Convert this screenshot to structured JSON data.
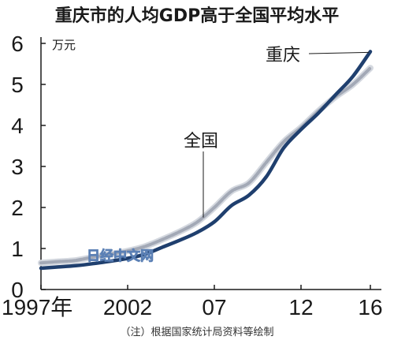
{
  "chart_data": {
    "type": "line",
    "title": "重庆市的人均GDP高于全国平均水平",
    "y_unit": "万元",
    "ylim": [
      0,
      6
    ],
    "y_ticks": [
      "0",
      "1",
      "2",
      "3",
      "4",
      "5",
      "6"
    ],
    "x_range": [
      1997,
      2016
    ],
    "x_ticks": [
      {
        "x": 1997,
        "label": "1997年"
      },
      {
        "x": 2002,
        "label": "2002"
      },
      {
        "x": 2007,
        "label": "07"
      },
      {
        "x": 2012,
        "label": "12"
      },
      {
        "x": 2016,
        "label": "16"
      }
    ],
    "x": [
      1997,
      1998,
      1999,
      2000,
      2001,
      2002,
      2003,
      2004,
      2005,
      2006,
      2007,
      2008,
      2009,
      2010,
      2011,
      2012,
      2013,
      2014,
      2015,
      2016
    ],
    "series": [
      {
        "name": "全国",
        "color": "#a3a9b6",
        "values": [
          0.65,
          0.68,
          0.71,
          0.79,
          0.86,
          0.94,
          1.05,
          1.22,
          1.41,
          1.64,
          2.0,
          2.4,
          2.6,
          3.1,
          3.6,
          3.95,
          4.35,
          4.7,
          5.0,
          5.4
        ]
      },
      {
        "name": "重庆",
        "color": "#1f3f6e",
        "values": [
          0.52,
          0.55,
          0.58,
          0.63,
          0.69,
          0.76,
          0.86,
          1.03,
          1.2,
          1.39,
          1.65,
          2.05,
          2.3,
          2.75,
          3.45,
          3.9,
          4.3,
          4.75,
          5.2,
          5.8
        ]
      }
    ],
    "annotations": [
      {
        "text": "重庆",
        "series": "重庆"
      },
      {
        "text": "全国",
        "series": "全国"
      }
    ],
    "note": "（注）根据国家统计局资料等绘制",
    "watermark": "日经中文网",
    "grid": false,
    "legend": "none"
  }
}
